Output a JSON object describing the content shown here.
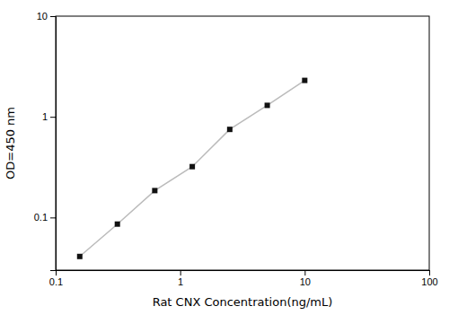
{
  "chart_data": {
    "type": "line",
    "x": [
      0.156,
      0.313,
      0.625,
      1.25,
      2.5,
      5.0,
      10.0
    ],
    "series": [
      {
        "type": "line",
        "color": "#bbbbbb",
        "values": [
          0.041,
          0.086,
          0.185,
          0.32,
          0.75,
          1.3,
          2.3
        ]
      },
      {
        "type": "scatter",
        "color": "#111111",
        "marker": "square",
        "values": [
          0.041,
          0.086,
          0.185,
          0.32,
          0.75,
          1.3,
          2.3
        ]
      }
    ],
    "x_label": "Rat CNX Concentration(ng/mL)",
    "y_label": "OD=450 nm",
    "xlim": [
      0.1,
      100
    ],
    "ylim": [
      0.03,
      10
    ],
    "xticks": [
      0.1,
      1,
      10,
      100
    ],
    "yticks": [
      0.1,
      1,
      10
    ],
    "log": true,
    "grid": false
  }
}
